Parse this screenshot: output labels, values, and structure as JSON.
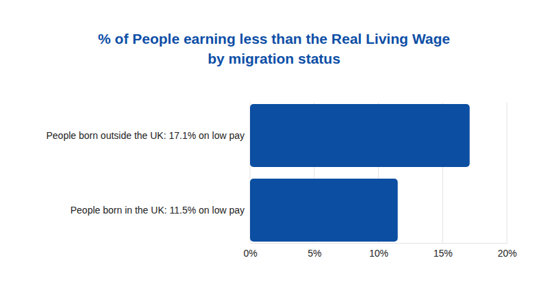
{
  "chart_data": {
    "type": "bar",
    "orientation": "horizontal",
    "title": "% of People earning less than the Real Living Wage\nby migration status",
    "categories": [
      "People born outside the UK: 17.1% on low pay",
      "People born in the UK: 11.5% on low pay"
    ],
    "values": [
      17.1,
      11.5
    ],
    "color": "#0b4ea2",
    "xlim": [
      0,
      20
    ],
    "xticks": [
      {
        "value": 0,
        "label": "0%"
      },
      {
        "value": 5,
        "label": "5%"
      },
      {
        "value": 10,
        "label": "10%"
      },
      {
        "value": 15,
        "label": "15%"
      },
      {
        "value": 20,
        "label": "20%"
      }
    ],
    "grid": true
  }
}
